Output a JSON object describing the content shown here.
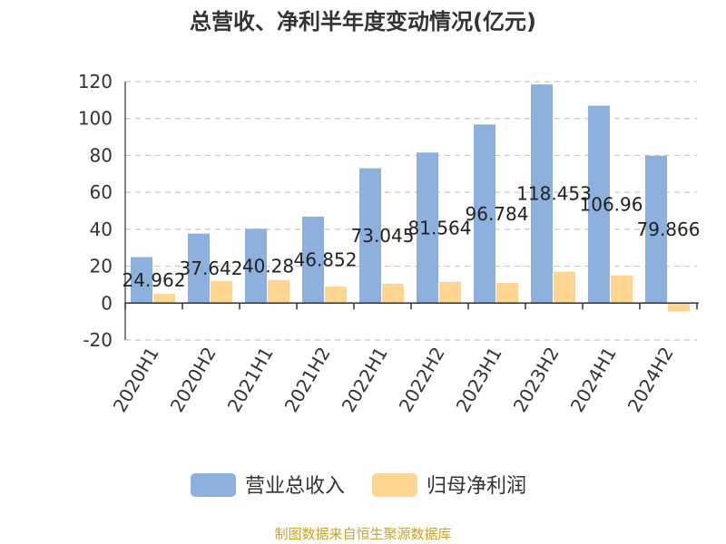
{
  "chart_data": {
    "type": "bar",
    "title": "总营收、净利半年度变动情况(亿元)",
    "categories": [
      "2020H1",
      "2020H2",
      "2021H1",
      "2021H2",
      "2022H1",
      "2022H2",
      "2023H1",
      "2023H2",
      "2024H1",
      "2024H2"
    ],
    "series": [
      {
        "name": "营业总收入",
        "color": "#8eb0dd",
        "values": [
          24.962,
          37.642,
          40.28,
          46.852,
          73.045,
          81.564,
          96.784,
          118.453,
          106.96,
          79.866
        ],
        "labels": [
          "24.962",
          "37.642",
          "40.28",
          "46.852",
          "73.045",
          "81.564",
          "96.784",
          "118.453",
          "106.96",
          "79.866"
        ]
      },
      {
        "name": "归母净利润",
        "color": "#ffd592",
        "values": [
          5.0,
          12.0,
          12.5,
          9.0,
          10.5,
          11.5,
          11.0,
          17.0,
          15.0,
          -4.5
        ]
      }
    ],
    "ylim": [
      -20,
      120
    ],
    "yticks": [
      -20,
      0,
      20,
      40,
      60,
      80,
      100,
      120
    ],
    "grid": true,
    "legend": "bottom"
  },
  "source": "制图数据来自恒生聚源数据库"
}
